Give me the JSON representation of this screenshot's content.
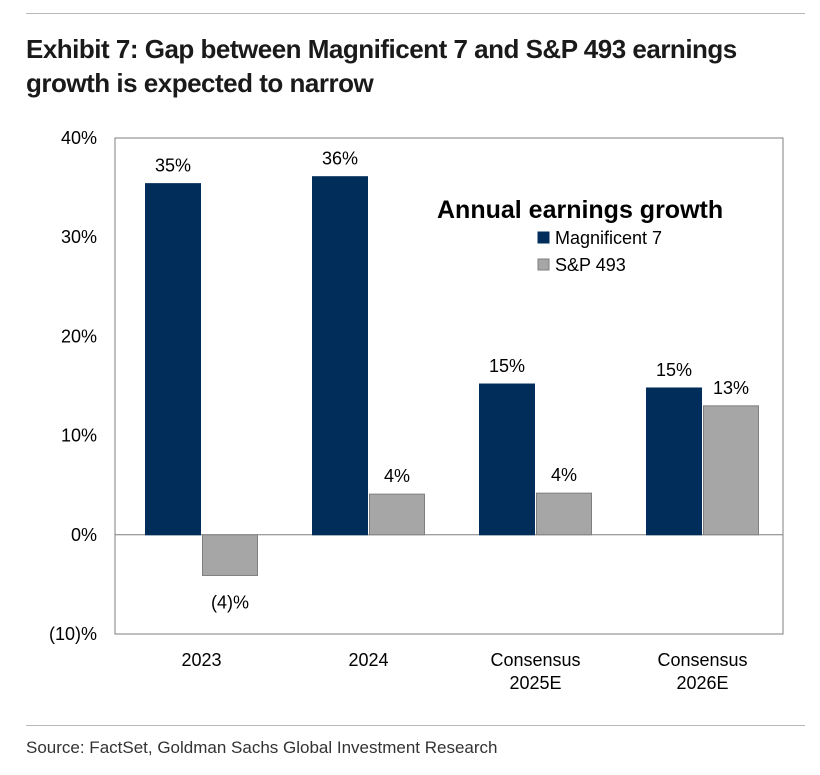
{
  "title": "Exhibit 7: Gap between Magnificent 7 and S&P 493 earnings growth is expected to narrow",
  "source": "Source: FactSet, Goldman Sachs Global Investment Research",
  "chart_data": {
    "type": "bar",
    "title": "Annual earnings growth",
    "xlabel": "",
    "ylabel": "",
    "ylim": [
      -10,
      40
    ],
    "yticks": [
      -10,
      0,
      10,
      20,
      30,
      40
    ],
    "ytick_labels": [
      "(10)%",
      "0%",
      "10%",
      "20%",
      "30%",
      "40%"
    ],
    "categories": [
      [
        "2023"
      ],
      [
        "2024"
      ],
      [
        "Consensus",
        "2025E"
      ],
      [
        "Consensus",
        "2026E"
      ]
    ],
    "series": [
      {
        "name": "Magnificent 7",
        "color": "#002d5a",
        "values": [
          35.4,
          36.1,
          15.2,
          14.8
        ],
        "labels": [
          "35%",
          "36%",
          "15%",
          "15%"
        ]
      },
      {
        "name": "S&P 493",
        "color": "#a6a6a6",
        "values": [
          -4.1,
          4.1,
          4.2,
          13.0
        ],
        "labels": [
          "(4)%",
          "4%",
          "4%",
          "13%"
        ]
      }
    ],
    "legend_position": "top-right",
    "grid": false
  }
}
